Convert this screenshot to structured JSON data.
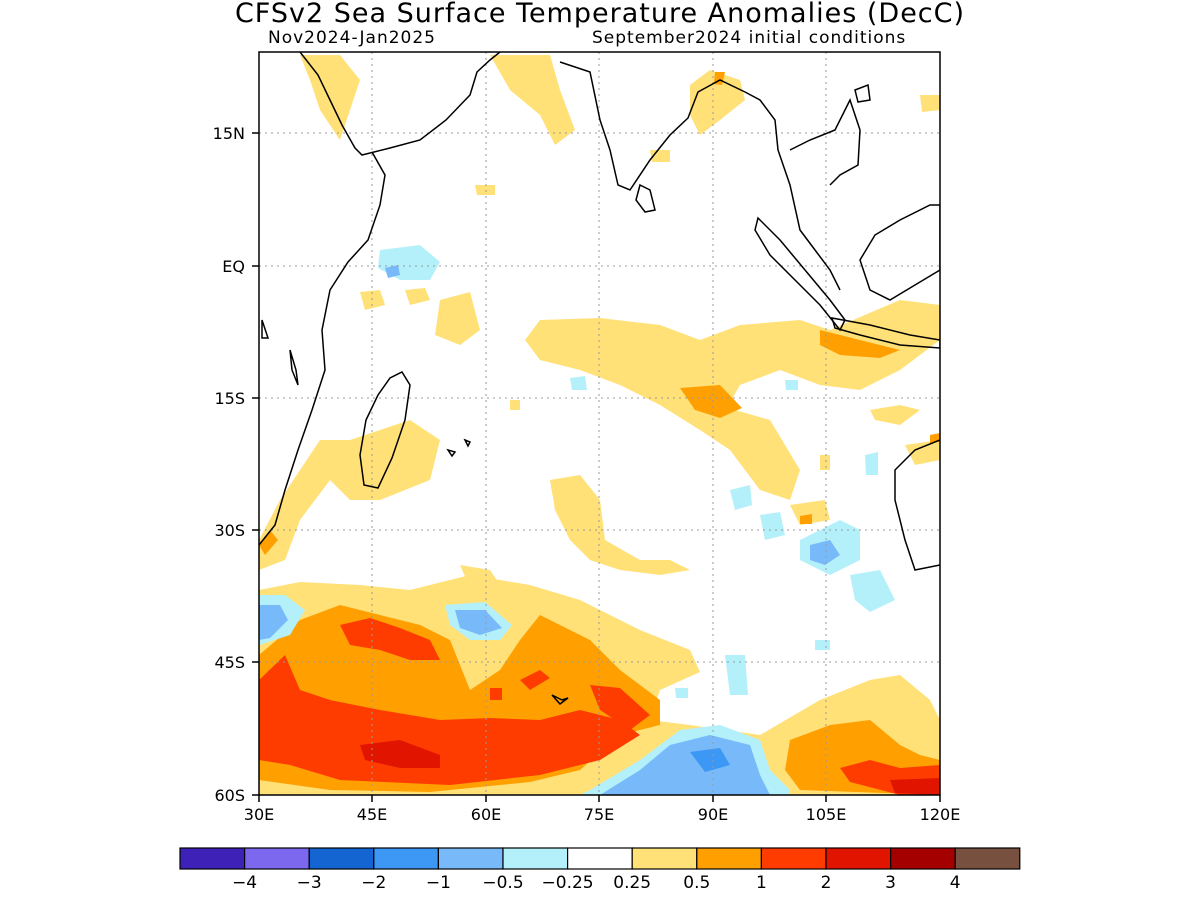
{
  "title": "CFSv2 Sea Surface Temperature Anomalies (DecC)",
  "subtitle_left": "Nov2024-Jan2025",
  "subtitle_right": "September2024 initial conditions",
  "axes": {
    "x_ticks": [
      "30E",
      "45E",
      "60E",
      "75E",
      "90E",
      "105E",
      "120E"
    ],
    "y_ticks": [
      "15N",
      "EQ",
      "15S",
      "30S",
      "45S",
      "60S"
    ]
  },
  "colorbar": {
    "colors": [
      "#3e22b8",
      "#7b68ee",
      "#1464d2",
      "#3c97f5",
      "#78b9fa",
      "#b4f0fa",
      "#ffffff",
      "#ffe178",
      "#ffa000",
      "#ff3c00",
      "#e11400",
      "#a50000",
      "#785040"
    ],
    "labels": [
      "-4",
      "-3",
      "-2",
      "-1",
      "-0.5",
      "-0.25",
      "0.25",
      "0.5",
      "1",
      "2",
      "3",
      "4"
    ]
  }
}
